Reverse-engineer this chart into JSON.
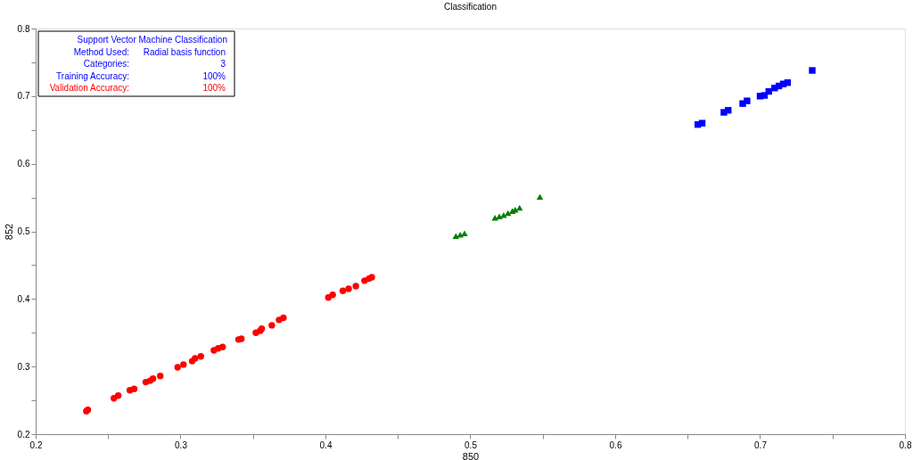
{
  "chart_data": {
    "type": "scatter",
    "title": "Classification",
    "xlabel": "850",
    "ylabel": "852",
    "annotations": [
      "Support Vector Machine Classification",
      "Method Used:",
      "Radial basis function",
      "Categories:",
      "3",
      "Training Accuracy:",
      "100%",
      "Validation Accuracy:",
      "100%"
    ],
    "xlim": [
      0.2,
      0.8
    ],
    "ylim": [
      0.2,
      0.8
    ],
    "xticks": [
      0.2,
      {
        "value": 0.25,
        "label": null
      },
      0.3,
      {
        "value": 0.35,
        "label": null
      },
      0.4,
      {
        "value": 0.45,
        "label": null
      },
      0.5,
      {
        "value": 0.55,
        "label": null
      },
      0.6,
      {
        "value": 0.65,
        "label": null
      },
      0.7,
      {
        "value": 0.75,
        "label": null
      },
      0.8
    ],
    "yticks": [
      0.2,
      {
        "value": 0.25,
        "label": null
      },
      0.3,
      {
        "value": 0.35,
        "label": null
      },
      0.4,
      {
        "value": 0.45,
        "label": null
      },
      0.5,
      {
        "value": 0.55,
        "label": null
      },
      0.6,
      {
        "value": 0.65,
        "label": null
      },
      0.7,
      {
        "value": 0.75,
        "label": null
      },
      0.8
    ],
    "grid": false,
    "series": [
      {
        "color": "#ff0000",
        "marker": "circle",
        "x": [
          0.235,
          0.236,
          0.254,
          0.257,
          0.265,
          0.268,
          0.276,
          0.279,
          0.281,
          0.286,
          0.298,
          0.302,
          0.308,
          0.31,
          0.314,
          0.323,
          0.326,
          0.329,
          0.34,
          0.342,
          0.352,
          0.355,
          0.356,
          0.363,
          0.368,
          0.371,
          0.402,
          0.405,
          0.412,
          0.416,
          0.421,
          0.427,
          0.43,
          0.432
        ],
        "values": [
          0.234,
          0.236,
          0.253,
          0.257,
          0.265,
          0.267,
          0.277,
          0.279,
          0.282,
          0.286,
          0.299,
          0.303,
          0.308,
          0.312,
          0.315,
          0.324,
          0.327,
          0.329,
          0.34,
          0.341,
          0.35,
          0.353,
          0.356,
          0.361,
          0.369,
          0.372,
          0.402,
          0.406,
          0.412,
          0.415,
          0.419,
          0.427,
          0.43,
          0.432
        ]
      },
      {
        "color": "#008000",
        "marker": "triangle",
        "x": [
          0.49,
          0.493,
          0.496,
          0.517,
          0.52,
          0.523,
          0.526,
          0.529,
          0.531,
          0.534,
          0.548
        ],
        "values": [
          0.493,
          0.495,
          0.497,
          0.52,
          0.522,
          0.524,
          0.527,
          0.53,
          0.532,
          0.535,
          0.551
        ]
      },
      {
        "color": "#0000ff",
        "marker": "square",
        "x": [
          0.657,
          0.66,
          0.675,
          0.678,
          0.688,
          0.691,
          0.7,
          0.703,
          0.706,
          0.71,
          0.713,
          0.716,
          0.719,
          0.736
        ],
        "values": [
          0.658,
          0.66,
          0.676,
          0.679,
          0.689,
          0.693,
          0.7,
          0.701,
          0.707,
          0.712,
          0.715,
          0.718,
          0.72,
          0.738
        ]
      }
    ]
  }
}
